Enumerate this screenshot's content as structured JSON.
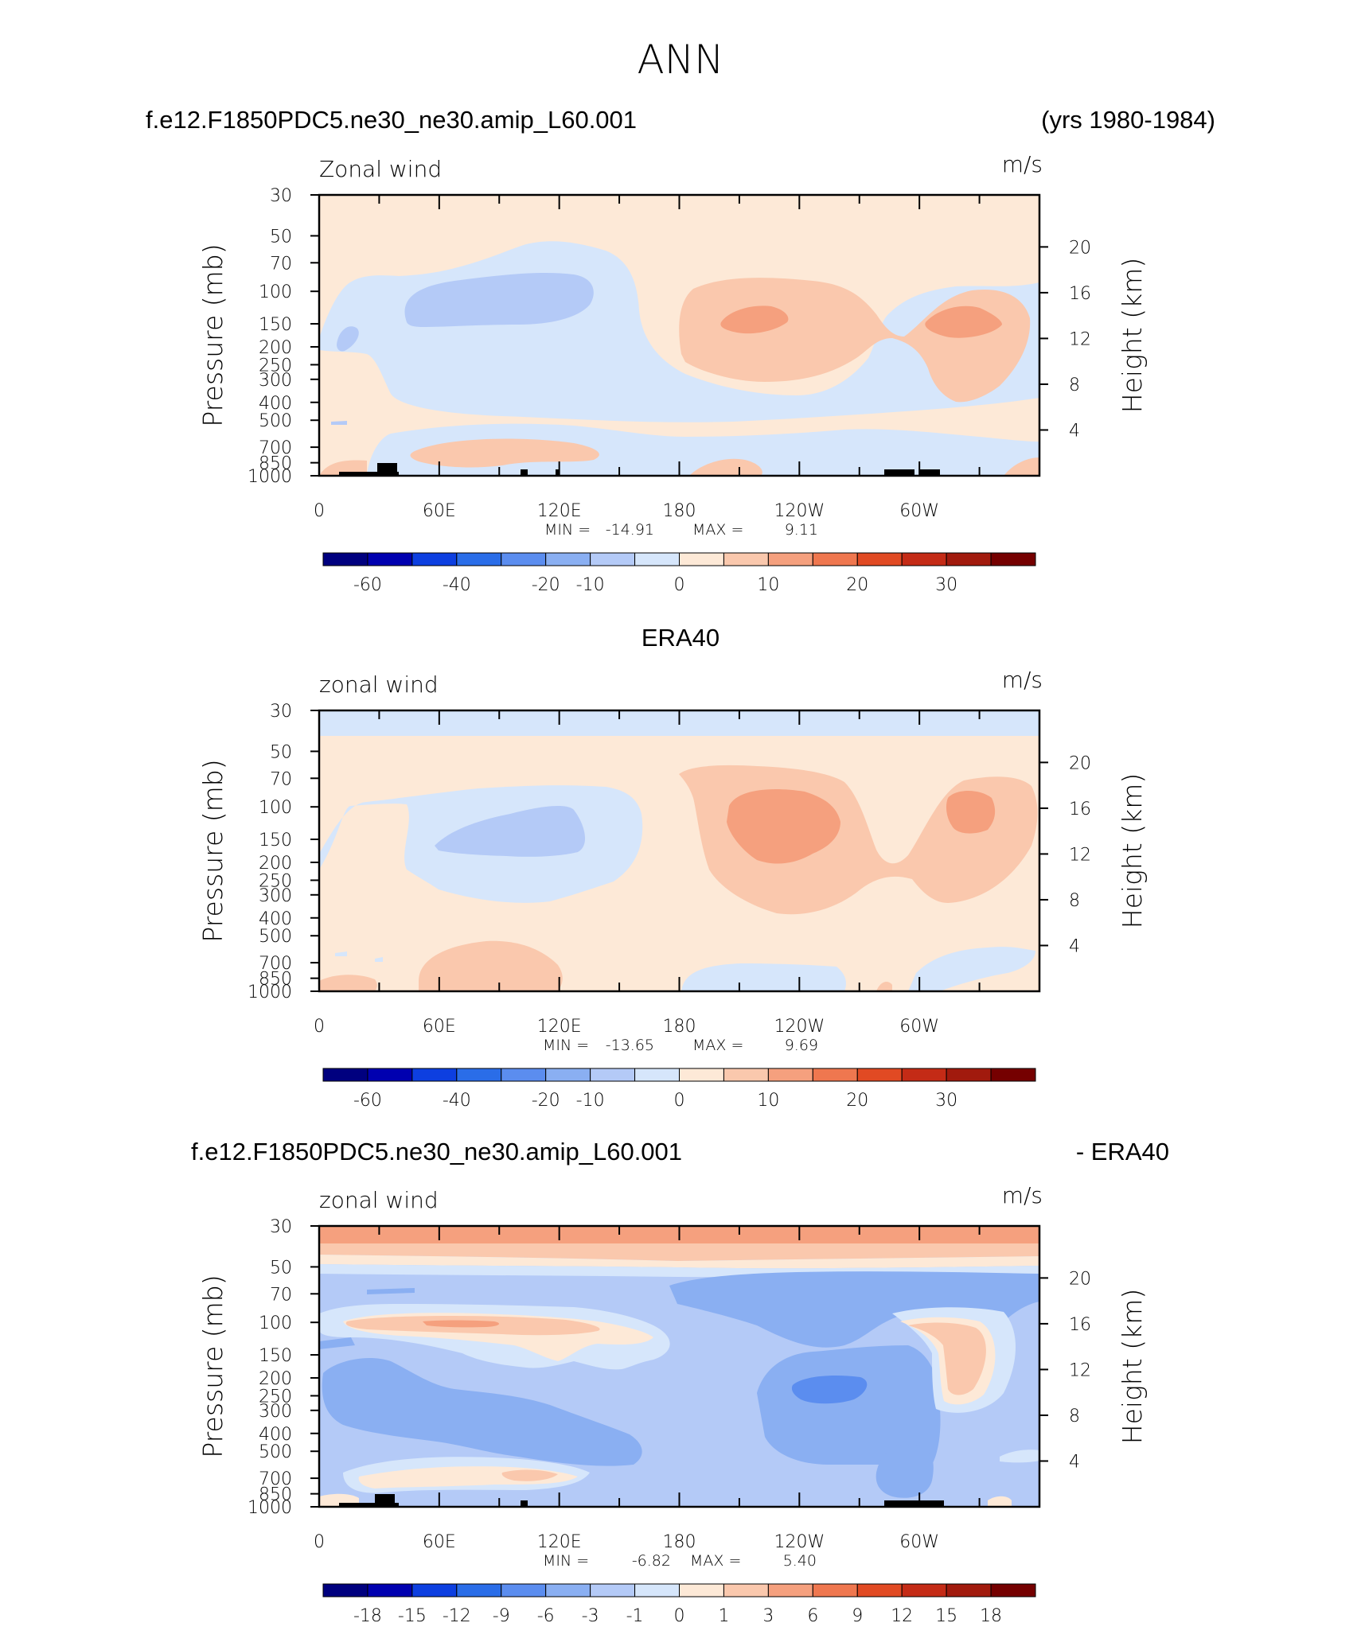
{
  "figure": {
    "title": "ANN"
  },
  "colorbars": {
    "wind": {
      "colors": [
        "#00007f",
        "#0000b0",
        "#0d3fe0",
        "#2a6de8",
        "#5b8def",
        "#8aaff2",
        "#b4caf7",
        "#d6e6fb",
        "#fde9d7",
        "#fac8ad",
        "#f5a07e",
        "#ef774f",
        "#e14a23",
        "#c42b16",
        "#a11a0d",
        "#750000"
      ],
      "labels": [
        "-60",
        "-40",
        "-20",
        "-10",
        "0",
        "10",
        "20",
        "30"
      ],
      "label_edges": [
        1,
        3,
        5,
        6,
        8,
        10,
        12,
        14
      ]
    },
    "diff": {
      "colors": [
        "#00007f",
        "#0000b0",
        "#0d3fe0",
        "#2a6de8",
        "#5b8def",
        "#8aaff2",
        "#b4caf7",
        "#d6e6fb",
        "#fde9d7",
        "#fac8ad",
        "#f5a07e",
        "#ef774f",
        "#e14a23",
        "#c42b16",
        "#a11a0d",
        "#750000"
      ],
      "labels": [
        "-18",
        "-15",
        "-12",
        "-9",
        "-6",
        "-3",
        "-1",
        "0",
        "1",
        "3",
        "6",
        "9",
        "12",
        "15",
        "18"
      ]
    }
  },
  "chart_data": [
    {
      "type": "contour",
      "header_left": "f.e12.F1850PDC5.ne30_ne30.amip_L60.001",
      "header_right": "(yrs 1980-1984)",
      "field_label": "Zonal wind",
      "units": "m/s",
      "ylabel": "Pressure (mb)",
      "y2label": "Height (km)",
      "pressure_levels": [
        30,
        50,
        70,
        100,
        150,
        200,
        250,
        300,
        400,
        500,
        700,
        850,
        1000
      ],
      "pressure_ticks": [
        "30",
        "50",
        "70",
        "100",
        "150",
        "200",
        "250",
        "300",
        "400",
        "500",
        "700",
        "850",
        "1000"
      ],
      "height_ticks_km": [
        "20",
        "16",
        "12",
        "8",
        "4"
      ],
      "lon_ticks": [
        "0",
        "60E",
        "120E",
        "180",
        "120W",
        "60W"
      ],
      "min_label": "MIN =",
      "min_value": "-14.91",
      "max_label": "MAX =",
      "max_value": "9.11",
      "colorbar": "wind"
    },
    {
      "type": "contour",
      "header_center": "ERA40",
      "field_label": "zonal wind",
      "units": "m/s",
      "ylabel": "Pressure (mb)",
      "y2label": "Height (km)",
      "pressure_levels": [
        30,
        50,
        70,
        100,
        150,
        200,
        250,
        300,
        400,
        500,
        700,
        850,
        1000
      ],
      "pressure_ticks": [
        "30",
        "50",
        "70",
        "100",
        "150",
        "200",
        "250",
        "300",
        "400",
        "500",
        "700",
        "850",
        "1000"
      ],
      "height_ticks_km": [
        "20",
        "16",
        "12",
        "8",
        "4"
      ],
      "lon_ticks": [
        "0",
        "60E",
        "120E",
        "180",
        "120W",
        "60W"
      ],
      "min_label": "MIN =",
      "min_value": "-13.65",
      "max_label": "MAX =",
      "max_value": "9.69",
      "colorbar": "wind"
    },
    {
      "type": "contour",
      "header_left": "f.e12.F1850PDC5.ne30_ne30.amip_L60.001",
      "header_right": "- ERA40",
      "field_label": "zonal wind",
      "units": "m/s",
      "ylabel": "Pressure (mb)",
      "y2label": "Height (km)",
      "pressure_levels": [
        30,
        50,
        70,
        100,
        150,
        200,
        250,
        300,
        400,
        500,
        700,
        850,
        1000
      ],
      "pressure_ticks": [
        "30",
        "50",
        "70",
        "100",
        "150",
        "200",
        "250",
        "300",
        "400",
        "500",
        "700",
        "850",
        "1000"
      ],
      "height_ticks_km": [
        "20",
        "16",
        "12",
        "8",
        "4"
      ],
      "lon_ticks": [
        "0",
        "60E",
        "120E",
        "180",
        "120W",
        "60W"
      ],
      "min_label": "MIN =",
      "min_value": "-6.82",
      "max_label": "MAX =",
      "max_value": "5.40",
      "colorbar": "diff"
    }
  ]
}
